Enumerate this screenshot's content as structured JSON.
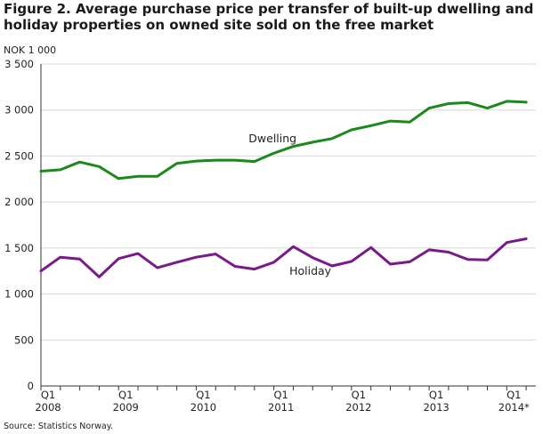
{
  "chart_data": {
    "type": "line",
    "title": "Figure 2. Average purchase price per transfer of built-up dwelling and holiday properties on owned site sold on the free market",
    "ylabel": "NOK 1 000",
    "source": "Source: Statistics Norway.",
    "ylim": [
      0,
      3500
    ],
    "yticks": [
      0,
      500,
      1000,
      1500,
      2000,
      2500,
      3000,
      3500
    ],
    "ytick_labels": [
      "0",
      "500",
      "1 000",
      "1 500",
      "2 000",
      "2 500",
      "3 000",
      "3 500"
    ],
    "x": [
      "2008Q1",
      "2008Q2",
      "2008Q3",
      "2008Q4",
      "2009Q1",
      "2009Q2",
      "2009Q3",
      "2009Q4",
      "2010Q1",
      "2010Q2",
      "2010Q3",
      "2010Q4",
      "2011Q1",
      "2011Q2",
      "2011Q3",
      "2011Q4",
      "2012Q1",
      "2012Q2",
      "2012Q3",
      "2012Q4",
      "2013Q1",
      "2013Q2",
      "2013Q3",
      "2013Q4",
      "2014Q1",
      "2014Q2"
    ],
    "xtick_labels": [
      {
        "index": 0,
        "q": "Q1",
        "year": "2008"
      },
      {
        "index": 4,
        "q": "Q1",
        "year": "2009"
      },
      {
        "index": 8,
        "q": "Q1",
        "year": "2010"
      },
      {
        "index": 12,
        "q": "Q1",
        "year": "2011"
      },
      {
        "index": 16,
        "q": "Q1",
        "year": "2012"
      },
      {
        "index": 20,
        "q": "Q1",
        "year": "2013"
      },
      {
        "index": 24,
        "q": "Q1",
        "year": "2014*"
      }
    ],
    "grid": true,
    "series": [
      {
        "name": "Dwelling",
        "color": "#1a8a1a",
        "values": [
          2335,
          2350,
          2435,
          2385,
          2255,
          2280,
          2280,
          2420,
          2445,
          2455,
          2455,
          2440,
          2530,
          2605,
          2650,
          2690,
          2785,
          2830,
          2880,
          2870,
          3020,
          3070,
          3080,
          3020,
          3095,
          3085
        ]
      },
      {
        "name": "Holiday",
        "color": "#7a1a8a",
        "values": [
          1250,
          1400,
          1380,
          1185,
          1385,
          1440,
          1285,
          1345,
          1400,
          1435,
          1300,
          1270,
          1345,
          1515,
          1395,
          1305,
          1355,
          1505,
          1325,
          1350,
          1480,
          1455,
          1375,
          1370,
          1560,
          1600
        ]
      }
    ]
  }
}
